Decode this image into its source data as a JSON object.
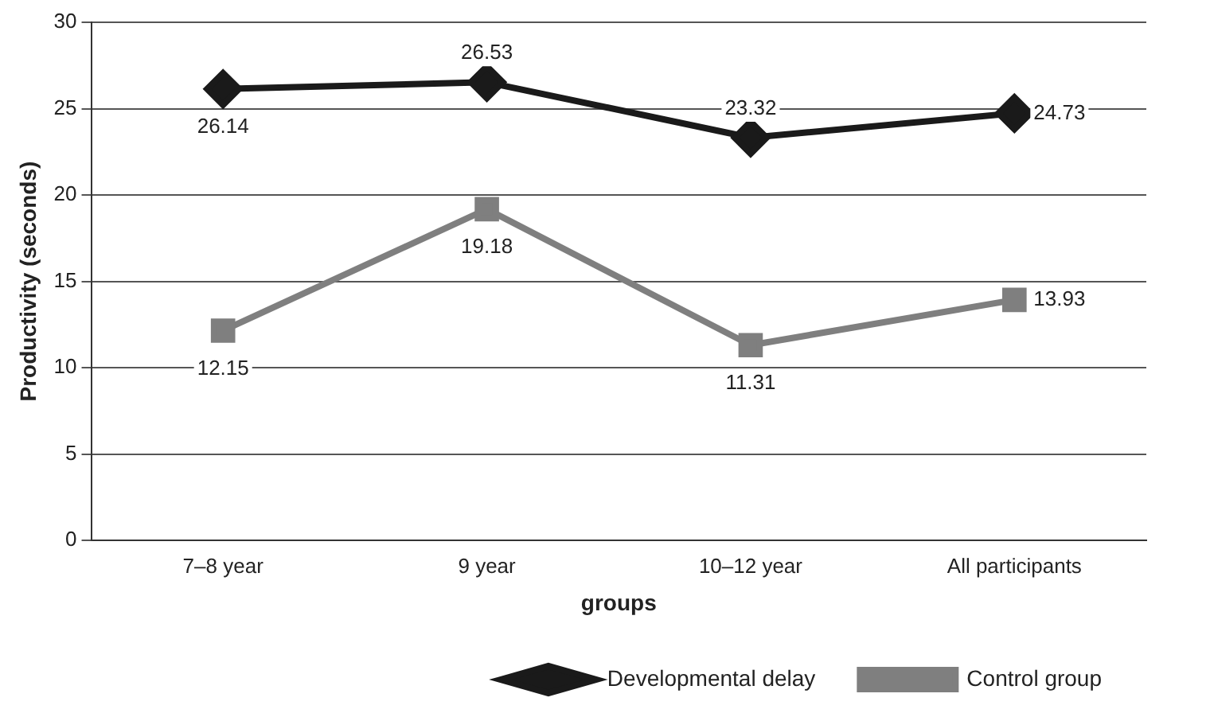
{
  "chart_data": {
    "type": "line",
    "xlabel": "groups",
    "ylabel": "Productivity (seconds)",
    "categories": [
      "7–8 year",
      "9 year",
      "10–12 year",
      "All participants"
    ],
    "series": [
      {
        "name": "Developmental delay",
        "color": "#1a1a1a",
        "marker": "diamond",
        "values": [
          26.14,
          26.53,
          23.32,
          24.73
        ]
      },
      {
        "name": "Control group",
        "color": "#7f7f7f",
        "marker": "square",
        "values": [
          12.15,
          19.18,
          11.31,
          13.93
        ]
      }
    ],
    "ylim": [
      0,
      30
    ],
    "yticks": [
      0,
      5,
      10,
      15,
      20,
      25,
      30
    ],
    "grid": "y",
    "legend": "bottom right",
    "data_labels": true
  }
}
